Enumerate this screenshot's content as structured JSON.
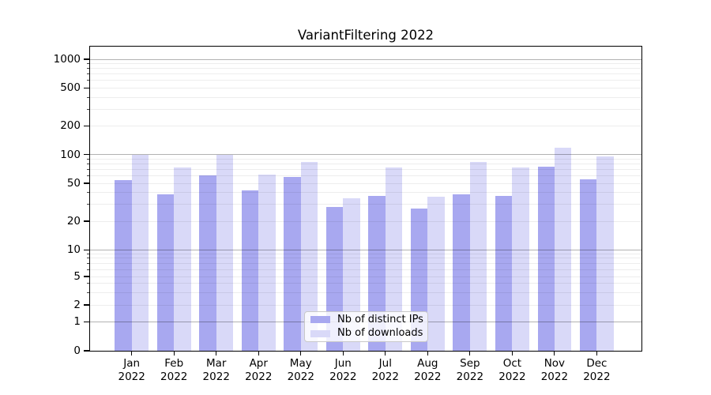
{
  "figure": {
    "title": "VariantFiltering 2022"
  },
  "chart_data": {
    "type": "bar",
    "title": "VariantFiltering 2022",
    "categories": [
      "Jan",
      "Feb",
      "Mar",
      "Apr",
      "May",
      "Jun",
      "Jul",
      "Aug",
      "Sep",
      "Oct",
      "Nov",
      "Dec"
    ],
    "category_second_line": "2022",
    "series": [
      {
        "name": "Nb of distinct IPs",
        "color": "#a8a8f0",
        "values": [
          54,
          38,
          60,
          42,
          58,
          28,
          37,
          27,
          38,
          37,
          74,
          55
        ]
      },
      {
        "name": "Nb of downloads",
        "color": "#d9d9f8",
        "values": [
          100,
          73,
          100,
          62,
          84,
          35,
          73,
          36,
          84,
          73,
          118,
          95
        ]
      }
    ],
    "xlabel": "",
    "ylabel": "",
    "yscale": "symlog",
    "ylim": [
      0,
      1358
    ],
    "y_tick_labels": [
      "1000",
      "500",
      "200",
      "100",
      "50",
      "20",
      "10",
      "5",
      "2",
      "1",
      "0"
    ],
    "grid": true,
    "legend_position": "lower center"
  }
}
